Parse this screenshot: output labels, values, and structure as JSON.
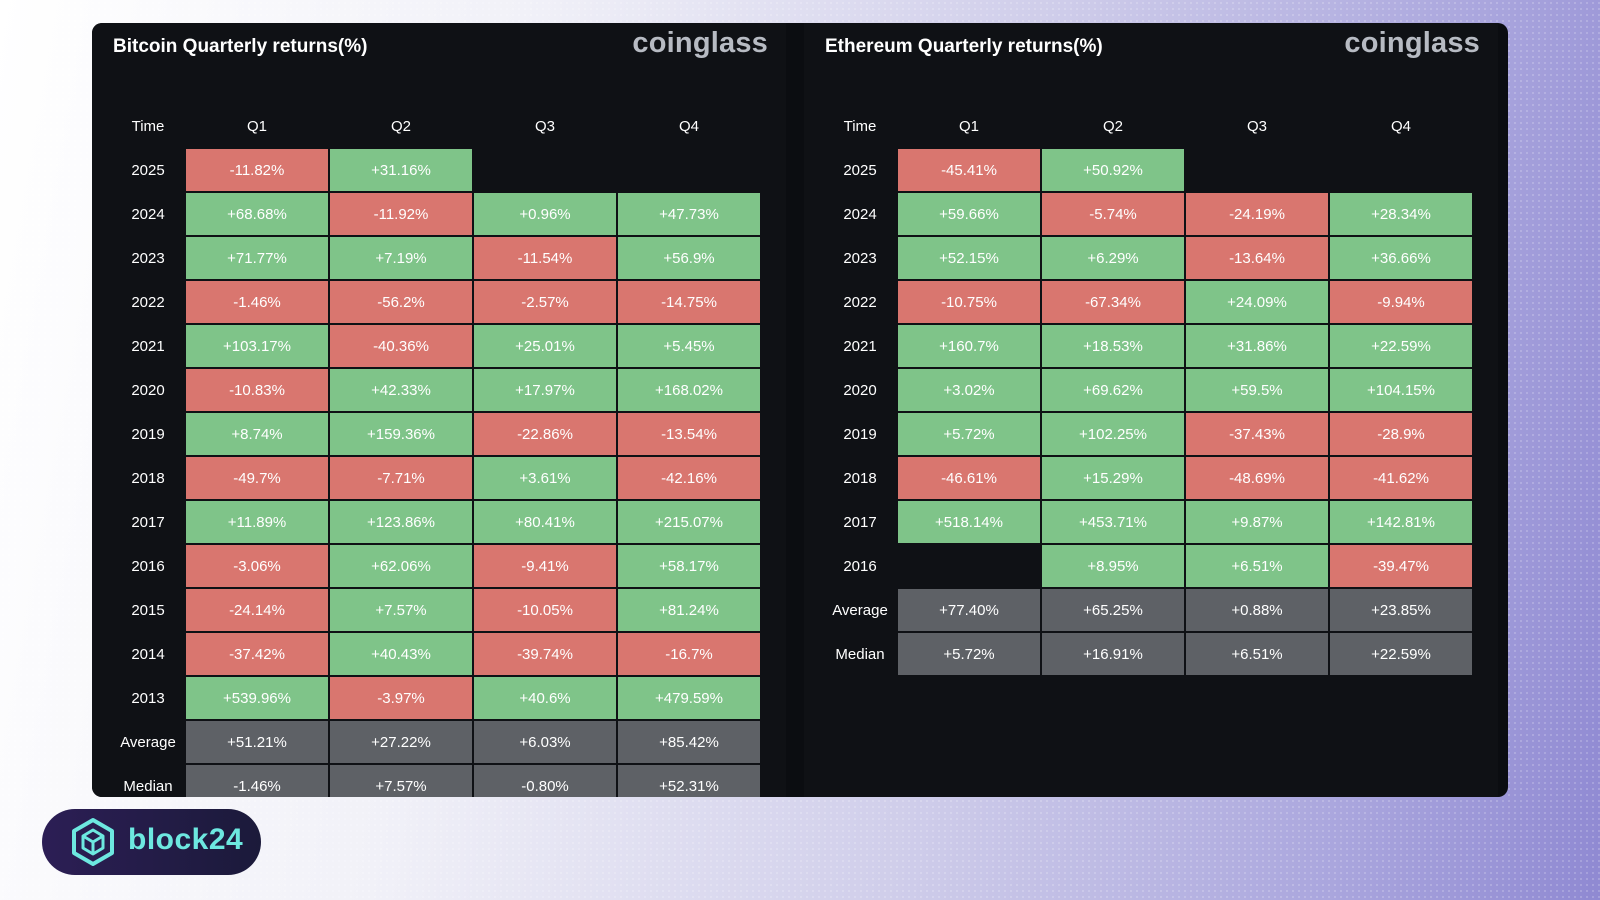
{
  "logo": {
    "text": "block24"
  },
  "colors": {
    "positive": "#7fc489",
    "negative": "#d9766f",
    "stat": "#5e6166",
    "panel": "#0f1115",
    "logo_accent": "#6de8e0"
  },
  "chart_data": [
    {
      "type": "table",
      "title": "Bitcoin Quarterly returns(%)",
      "brand": "coinglass",
      "columns": [
        "Time",
        "Q1",
        "Q2",
        "Q3",
        "Q4"
      ],
      "rows": [
        {
          "time": "2025",
          "values": [
            "-11.82%",
            "+31.16%",
            "",
            ""
          ]
        },
        {
          "time": "2024",
          "values": [
            "+68.68%",
            "-11.92%",
            "+0.96%",
            "+47.73%"
          ]
        },
        {
          "time": "2023",
          "values": [
            "+71.77%",
            "+7.19%",
            "-11.54%",
            "+56.9%"
          ]
        },
        {
          "time": "2022",
          "values": [
            "-1.46%",
            "-56.2%",
            "-2.57%",
            "-14.75%"
          ]
        },
        {
          "time": "2021",
          "values": [
            "+103.17%",
            "-40.36%",
            "+25.01%",
            "+5.45%"
          ]
        },
        {
          "time": "2020",
          "values": [
            "-10.83%",
            "+42.33%",
            "+17.97%",
            "+168.02%"
          ]
        },
        {
          "time": "2019",
          "values": [
            "+8.74%",
            "+159.36%",
            "-22.86%",
            "-13.54%"
          ]
        },
        {
          "time": "2018",
          "values": [
            "-49.7%",
            "-7.71%",
            "+3.61%",
            "-42.16%"
          ]
        },
        {
          "time": "2017",
          "values": [
            "+11.89%",
            "+123.86%",
            "+80.41%",
            "+215.07%"
          ]
        },
        {
          "time": "2016",
          "values": [
            "-3.06%",
            "+62.06%",
            "-9.41%",
            "+58.17%"
          ]
        },
        {
          "time": "2015",
          "values": [
            "-24.14%",
            "+7.57%",
            "-10.05%",
            "+81.24%"
          ]
        },
        {
          "time": "2014",
          "values": [
            "-37.42%",
            "+40.43%",
            "-39.74%",
            "-16.7%"
          ]
        },
        {
          "time": "2013",
          "values": [
            "+539.96%",
            "-3.97%",
            "+40.6%",
            "+479.59%"
          ]
        }
      ],
      "stats": [
        {
          "time": "Average",
          "values": [
            "+51.21%",
            "+27.22%",
            "+6.03%",
            "+85.42%"
          ]
        },
        {
          "time": "Median",
          "values": [
            "-1.46%",
            "+7.57%",
            "-0.80%",
            "+52.31%"
          ]
        }
      ]
    },
    {
      "type": "table",
      "title": "Ethereum Quarterly returns(%)",
      "brand": "coinglass",
      "columns": [
        "Time",
        "Q1",
        "Q2",
        "Q3",
        "Q4"
      ],
      "rows": [
        {
          "time": "2025",
          "values": [
            "-45.41%",
            "+50.92%",
            "",
            ""
          ]
        },
        {
          "time": "2024",
          "values": [
            "+59.66%",
            "-5.74%",
            "-24.19%",
            "+28.34%"
          ]
        },
        {
          "time": "2023",
          "values": [
            "+52.15%",
            "+6.29%",
            "-13.64%",
            "+36.66%"
          ]
        },
        {
          "time": "2022",
          "values": [
            "-10.75%",
            "-67.34%",
            "+24.09%",
            "-9.94%"
          ]
        },
        {
          "time": "2021",
          "values": [
            "+160.7%",
            "+18.53%",
            "+31.86%",
            "+22.59%"
          ]
        },
        {
          "time": "2020",
          "values": [
            "+3.02%",
            "+69.62%",
            "+59.5%",
            "+104.15%"
          ]
        },
        {
          "time": "2019",
          "values": [
            "+5.72%",
            "+102.25%",
            "-37.43%",
            "-28.9%"
          ]
        },
        {
          "time": "2018",
          "values": [
            "-46.61%",
            "+15.29%",
            "-48.69%",
            "-41.62%"
          ]
        },
        {
          "time": "2017",
          "values": [
            "+518.14%",
            "+453.71%",
            "+9.87%",
            "+142.81%"
          ]
        },
        {
          "time": "2016",
          "values": [
            "",
            "+8.95%",
            "+6.51%",
            "-39.47%"
          ]
        }
      ],
      "stats": [
        {
          "time": "Average",
          "values": [
            "+77.40%",
            "+65.25%",
            "+0.88%",
            "+23.85%"
          ]
        },
        {
          "time": "Median",
          "values": [
            "+5.72%",
            "+16.91%",
            "+6.51%",
            "+22.59%"
          ]
        }
      ]
    }
  ]
}
